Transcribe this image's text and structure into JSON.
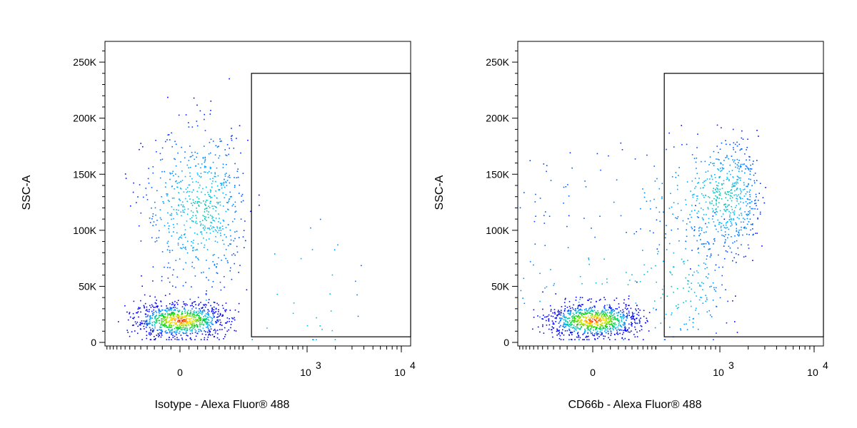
{
  "chart_data": [
    {
      "type": "scatter",
      "xlabel": "Isotype - Alexa Fluor® 488",
      "ylabel": "SSC-A",
      "x_scale": "biexponential",
      "y_ticks": [
        "0",
        "50K",
        "100K",
        "150K",
        "200K",
        "250K"
      ],
      "y_tick_values": [
        0,
        50000,
        100000,
        150000,
        200000,
        250000
      ],
      "ylim": [
        0,
        262144
      ],
      "x_ticks": [
        {
          "label": "0",
          "value": 0
        },
        {
          "base": "10",
          "exp": "3",
          "value": 1000
        },
        {
          "base": "10",
          "exp": "4",
          "value": 10000
        }
      ],
      "gate": {
        "x_min": 250,
        "x_max": 100000,
        "y_min": 5000,
        "y_max": 240000
      },
      "colors": {
        "low": "#0000ff",
        "mid": "#00d000",
        "high": "#ff0000"
      },
      "populations": [
        {
          "name": "",
          "x_center": 0,
          "x_spread": 60,
          "y_center": 20000,
          "y_spread": 8000,
          "count": 900
        },
        {
          "name": "",
          "x_center": 50,
          "x_spread": 70,
          "y_center": 120000,
          "y_spread": 35000,
          "count": 650
        },
        {
          "name": "",
          "x_center": 1200,
          "x_spread": 1500,
          "y_center": 40000,
          "y_spread": 40000,
          "count": 35
        }
      ]
    },
    {
      "type": "scatter",
      "xlabel": "CD66b - Alexa Fluor® 488",
      "ylabel": "SSC-A",
      "x_scale": "biexponential",
      "y_ticks": [
        "0",
        "50K",
        "100K",
        "150K",
        "200K",
        "250K"
      ],
      "y_tick_values": [
        0,
        50000,
        100000,
        150000,
        200000,
        250000
      ],
      "ylim": [
        0,
        262144
      ],
      "x_ticks": [
        {
          "label": "0",
          "value": 0
        },
        {
          "base": "10",
          "exp": "3",
          "value": 1000
        },
        {
          "base": "10",
          "exp": "4",
          "value": 10000
        }
      ],
      "gate": {
        "x_min": 250,
        "x_max": 100000,
        "y_min": 5000,
        "y_max": 240000
      },
      "colors": {
        "low": "#0000ff",
        "mid": "#00d000",
        "high": "#ff0000"
      },
      "populations": [
        {
          "name": "",
          "x_center": 0,
          "x_spread": 60,
          "y_center": 20000,
          "y_spread": 8000,
          "count": 900
        },
        {
          "name": "",
          "x_center": 1100,
          "x_spread": 700,
          "y_center": 130000,
          "y_spread": 25000,
          "count": 650
        },
        {
          "name": "",
          "x_center": 300,
          "x_spread": 400,
          "y_center": 50000,
          "y_spread": 30000,
          "count": 250
        }
      ]
    }
  ]
}
